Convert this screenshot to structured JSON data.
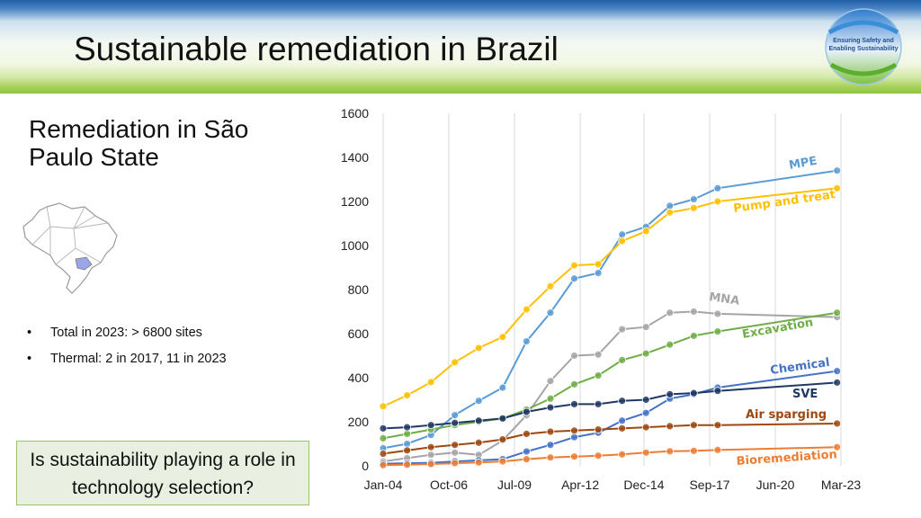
{
  "slide": {
    "title": "Sustainable remediation in Brazil",
    "logo_text": [
      "Ensuring Safety and",
      "Enabling Sustainability"
    ],
    "subtitle": "Remediation in São Paulo State",
    "bullets": [
      "Total in 2023: > 6800 sites",
      "Thermal: 2 in 2017, 11 in 2023"
    ],
    "bullet_marker": "•",
    "callout": "Is sustainability playing a role in technology selection?"
  },
  "colors": {
    "banner_top": "#1f5fa8",
    "banner_bottom": "#8cc43f",
    "callout_bg": "#e9f0e1",
    "callout_border": "#98c46a",
    "highlight_state": "#9aa6e8"
  },
  "icons": [
    "brazil-map-icon",
    "globe-logo-icon"
  ],
  "chart_data": {
    "type": "line",
    "title": "",
    "xlabel": "",
    "ylabel": "",
    "x_ticks": [
      "Jan-04",
      "Oct-06",
      "Jul-09",
      "Apr-12",
      "Dec-14",
      "Sep-17",
      "Jun-20",
      "Mar-23"
    ],
    "y_ticks": [
      0,
      200,
      400,
      600,
      800,
      1000,
      1200,
      1400,
      1600
    ],
    "ylim": [
      0,
      1600
    ],
    "grid": "vertical",
    "legend": "inline labels",
    "series": [
      {
        "name": "MPE",
        "color": "#5b9bd5",
        "points": [
          [
            "2004-01",
            80
          ],
          [
            "2005-01",
            100
          ],
          [
            "2006-01",
            140
          ],
          [
            "2007-01",
            230
          ],
          [
            "2008-01",
            295
          ],
          [
            "2009-01",
            355
          ],
          [
            "2010-01",
            565
          ],
          [
            "2011-01",
            695
          ],
          [
            "2012-01",
            850
          ],
          [
            "2013-01",
            875
          ],
          [
            "2014-01",
            1050
          ],
          [
            "2015-01",
            1085
          ],
          [
            "2016-01",
            1180
          ],
          [
            "2017-01",
            1210
          ],
          [
            "2018-01",
            1260
          ],
          [
            "2023-01",
            1340
          ]
        ]
      },
      {
        "name": "Pump and treat",
        "color": "#ffc000",
        "points": [
          [
            "2004-01",
            270
          ],
          [
            "2005-01",
            320
          ],
          [
            "2006-01",
            380
          ],
          [
            "2007-01",
            470
          ],
          [
            "2008-01",
            535
          ],
          [
            "2009-01",
            585
          ],
          [
            "2010-01",
            710
          ],
          [
            "2011-01",
            815
          ],
          [
            "2012-01",
            910
          ],
          [
            "2013-01",
            915
          ],
          [
            "2014-01",
            1020
          ],
          [
            "2015-01",
            1065
          ],
          [
            "2016-01",
            1150
          ],
          [
            "2017-01",
            1170
          ],
          [
            "2018-01",
            1200
          ],
          [
            "2023-01",
            1260
          ]
        ]
      },
      {
        "name": "MNA",
        "color": "#a5a5a5",
        "points": [
          [
            "2004-01",
            20
          ],
          [
            "2005-01",
            35
          ],
          [
            "2006-01",
            50
          ],
          [
            "2007-01",
            60
          ],
          [
            "2008-01",
            50
          ],
          [
            "2009-01",
            115
          ],
          [
            "2010-01",
            230
          ],
          [
            "2011-01",
            385
          ],
          [
            "2012-01",
            500
          ],
          [
            "2013-01",
            505
          ],
          [
            "2014-01",
            620
          ],
          [
            "2015-01",
            630
          ],
          [
            "2016-01",
            695
          ],
          [
            "2017-01",
            700
          ],
          [
            "2018-01",
            690
          ],
          [
            "2023-01",
            675
          ]
        ]
      },
      {
        "name": "Excavation",
        "color": "#70ad47",
        "points": [
          [
            "2004-01",
            125
          ],
          [
            "2005-01",
            145
          ],
          [
            "2006-01",
            165
          ],
          [
            "2007-01",
            185
          ],
          [
            "2008-01",
            200
          ],
          [
            "2009-01",
            215
          ],
          [
            "2010-01",
            255
          ],
          [
            "2011-01",
            305
          ],
          [
            "2012-01",
            370
          ],
          [
            "2013-01",
            410
          ],
          [
            "2014-01",
            480
          ],
          [
            "2015-01",
            510
          ],
          [
            "2016-01",
            550
          ],
          [
            "2017-01",
            590
          ],
          [
            "2018-01",
            610
          ],
          [
            "2023-01",
            695
          ]
        ]
      },
      {
        "name": "Chemical",
        "color": "#4472c4",
        "points": [
          [
            "2004-01",
            10
          ],
          [
            "2005-01",
            12
          ],
          [
            "2006-01",
            14
          ],
          [
            "2007-01",
            20
          ],
          [
            "2008-01",
            25
          ],
          [
            "2009-01",
            30
          ],
          [
            "2010-01",
            65
          ],
          [
            "2011-01",
            95
          ],
          [
            "2012-01",
            130
          ],
          [
            "2013-01",
            150
          ],
          [
            "2014-01",
            205
          ],
          [
            "2015-01",
            240
          ],
          [
            "2016-01",
            305
          ],
          [
            "2017-01",
            325
          ],
          [
            "2018-01",
            355
          ],
          [
            "2023-01",
            430
          ]
        ]
      },
      {
        "name": "SVE",
        "color": "#1f3864",
        "points": [
          [
            "2004-01",
            170
          ],
          [
            "2005-01",
            175
          ],
          [
            "2006-01",
            185
          ],
          [
            "2007-01",
            195
          ],
          [
            "2008-01",
            205
          ],
          [
            "2009-01",
            215
          ],
          [
            "2010-01",
            245
          ],
          [
            "2011-01",
            265
          ],
          [
            "2012-01",
            280
          ],
          [
            "2013-01",
            280
          ],
          [
            "2014-01",
            295
          ],
          [
            "2015-01",
            300
          ],
          [
            "2016-01",
            325
          ],
          [
            "2017-01",
            330
          ],
          [
            "2018-01",
            340
          ],
          [
            "2023-01",
            378
          ]
        ]
      },
      {
        "name": "Air sparging",
        "color": "#9e480e",
        "points": [
          [
            "2004-01",
            55
          ],
          [
            "2005-01",
            70
          ],
          [
            "2006-01",
            85
          ],
          [
            "2007-01",
            95
          ],
          [
            "2008-01",
            105
          ],
          [
            "2009-01",
            120
          ],
          [
            "2010-01",
            145
          ],
          [
            "2011-01",
            155
          ],
          [
            "2012-01",
            160
          ],
          [
            "2013-01",
            165
          ],
          [
            "2014-01",
            170
          ],
          [
            "2015-01",
            175
          ],
          [
            "2016-01",
            180
          ],
          [
            "2017-01",
            185
          ],
          [
            "2018-01",
            185
          ],
          [
            "2023-01",
            192
          ]
        ]
      },
      {
        "name": "Bioremediation",
        "color": "#ed7d31",
        "points": [
          [
            "2004-01",
            3
          ],
          [
            "2005-01",
            5
          ],
          [
            "2006-01",
            8
          ],
          [
            "2007-01",
            12
          ],
          [
            "2008-01",
            15
          ],
          [
            "2009-01",
            20
          ],
          [
            "2010-01",
            30
          ],
          [
            "2011-01",
            38
          ],
          [
            "2012-01",
            42
          ],
          [
            "2013-01",
            46
          ],
          [
            "2014-01",
            52
          ],
          [
            "2015-01",
            60
          ],
          [
            "2016-01",
            66
          ],
          [
            "2017-01",
            68
          ],
          [
            "2018-01",
            72
          ],
          [
            "2023-01",
            85
          ]
        ]
      }
    ]
  }
}
